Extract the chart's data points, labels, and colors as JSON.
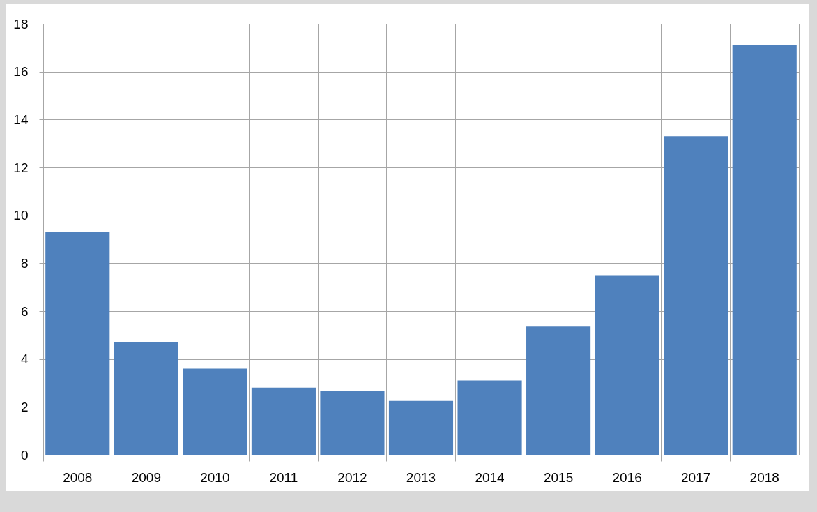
{
  "chart_data": {
    "type": "bar",
    "categories": [
      "2008",
      "2009",
      "2010",
      "2011",
      "2012",
      "2013",
      "2014",
      "2015",
      "2016",
      "2017",
      "2018"
    ],
    "values": [
      9.3,
      4.7,
      3.6,
      2.8,
      2.65,
      2.25,
      3.1,
      5.35,
      7.5,
      13.3,
      17.1
    ],
    "color": "#4f81bd",
    "ylim": [
      0,
      18
    ],
    "yticks": [
      0,
      2,
      4,
      6,
      8,
      10,
      12,
      14,
      16,
      18
    ],
    "grid": true
  }
}
